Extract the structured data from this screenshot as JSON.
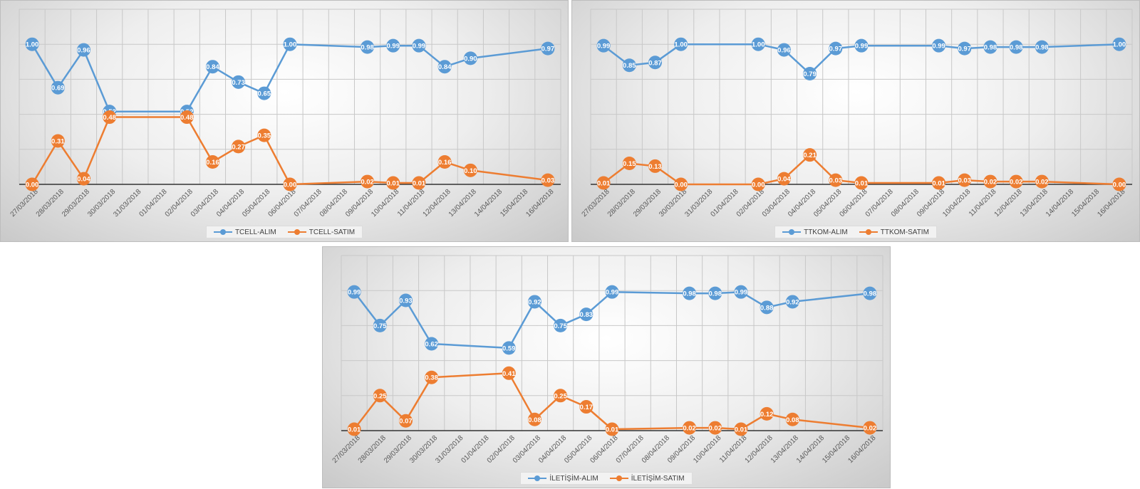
{
  "colors": {
    "alim": "#5b9bd5",
    "satim": "#ed7d31",
    "grid": "#c8c8c8",
    "axis_text": "#595959",
    "label_text": "#ffffff"
  },
  "chart_data": [
    {
      "type": "line",
      "title": "",
      "xlabel": "",
      "ylabel": "",
      "ylim": [
        0,
        1.25
      ],
      "grid": true,
      "legend_position": "bottom",
      "categories": [
        "27/03/2018",
        "28/03/2018",
        "29/03/2018",
        "30/03/2018",
        "31/03/2018",
        "01/04/2018",
        "02/04/2018",
        "03/04/2018",
        "04/04/2018",
        "05/04/2018",
        "06/04/2018",
        "07/04/2018",
        "08/04/2018",
        "09/04/2018",
        "10/04/2018",
        "11/04/2018",
        "12/04/2018",
        "13/04/2018",
        "14/04/2018",
        "15/04/2018",
        "16/04/2018"
      ],
      "series": [
        {
          "name": "TCELL-ALIM",
          "color": "#5b9bd5",
          "values": [
            1.0,
            0.69,
            0.96,
            0.52,
            null,
            null,
            0.52,
            0.84,
            0.73,
            0.65,
            1.0,
            null,
            null,
            0.98,
            0.99,
            0.99,
            0.84,
            0.9,
            null,
            null,
            0.97
          ],
          "labels": [
            "1.00",
            "0.69",
            "0.96",
            "0.52",
            "",
            "",
            "0.52",
            "0.84",
            "0.73",
            "0.65",
            "1.00",
            "",
            "",
            "0.98",
            "0.99",
            "0.99",
            "0.84",
            "0.90",
            "",
            "",
            "0.97"
          ]
        },
        {
          "name": "TCELL-SATIM",
          "color": "#ed7d31",
          "values": [
            0.0,
            0.31,
            0.04,
            0.48,
            null,
            null,
            0.48,
            0.16,
            0.27,
            0.35,
            0.0,
            null,
            null,
            0.02,
            0.01,
            0.01,
            0.16,
            0.1,
            null,
            null,
            0.03
          ],
          "labels": [
            "0.00",
            "0.31",
            "0.04",
            "0.48",
            "",
            "",
            "0.48",
            "0.16",
            "0.27",
            "0.35",
            "0.00",
            "",
            "",
            "0.02",
            "0.01",
            "0.01",
            "0.16",
            "0.10",
            "",
            "",
            "0.03"
          ]
        }
      ]
    },
    {
      "type": "line",
      "title": "",
      "xlabel": "",
      "ylabel": "",
      "ylim": [
        0,
        1.25
      ],
      "grid": true,
      "legend_position": "bottom",
      "categories": [
        "27/03/2018",
        "28/03/2018",
        "29/03/2018",
        "30/03/2018",
        "31/03/2018",
        "01/04/2018",
        "02/04/2018",
        "03/04/2018",
        "04/04/2018",
        "05/04/2018",
        "06/04/2018",
        "07/04/2018",
        "08/04/2018",
        "09/04/2018",
        "10/04/2018",
        "11/04/2018",
        "12/04/2018",
        "13/04/2018",
        "14/04/2018",
        "15/04/2018",
        "16/04/2018"
      ],
      "series": [
        {
          "name": "TTKOM-ALIM",
          "color": "#5b9bd5",
          "values": [
            0.99,
            0.85,
            0.87,
            1.0,
            null,
            null,
            1.0,
            0.96,
            0.79,
            0.97,
            0.99,
            null,
            null,
            0.99,
            0.97,
            0.98,
            0.98,
            0.98,
            null,
            null,
            1.0
          ],
          "labels": [
            "0.99",
            "0.85",
            "0.87",
            "1.00",
            "",
            "",
            "1.00",
            "0.96",
            "0.79",
            "0.97",
            "0.99",
            "",
            "",
            "0.99",
            "0.97",
            "0.98",
            "0.98",
            "0.98",
            "",
            "",
            "1.00"
          ]
        },
        {
          "name": "TTKOM-SATIM",
          "color": "#ed7d31",
          "values": [
            0.01,
            0.15,
            0.13,
            0.0,
            null,
            null,
            0.0,
            0.04,
            0.21,
            0.03,
            0.01,
            null,
            null,
            0.01,
            0.03,
            0.02,
            0.02,
            0.02,
            null,
            null,
            0.0
          ],
          "labels": [
            "0.01",
            "0.15",
            "0.13",
            "0.00",
            "",
            "",
            "0.00",
            "0.04",
            "0.21",
            "0.03",
            "0.01",
            "",
            "",
            "0.01",
            "0.03",
            "0.02",
            "0.02",
            "0.02",
            "",
            "",
            "0.00"
          ]
        }
      ]
    },
    {
      "type": "line",
      "title": "",
      "xlabel": "",
      "ylabel": "",
      "ylim": [
        0,
        1.25
      ],
      "grid": true,
      "legend_position": "bottom",
      "categories": [
        "27/03/2018",
        "28/03/2018",
        "29/03/2018",
        "30/03/2018",
        "31/03/2018",
        "01/04/2018",
        "02/04/2018",
        "03/04/2018",
        "04/04/2018",
        "05/04/2018",
        "06/04/2018",
        "07/04/2018",
        "08/04/2018",
        "09/04/2018",
        "10/04/2018",
        "11/04/2018",
        "12/04/2018",
        "13/04/2018",
        "14/04/2018",
        "15/04/2018",
        "16/04/2018"
      ],
      "series": [
        {
          "name": "İLETİŞİM-ALIM",
          "color": "#5b9bd5",
          "values": [
            0.99,
            0.75,
            0.93,
            0.62,
            null,
            null,
            0.59,
            0.92,
            0.75,
            0.83,
            0.99,
            null,
            null,
            0.98,
            0.98,
            0.99,
            0.88,
            0.92,
            null,
            null,
            0.98
          ],
          "labels": [
            "0.99",
            "0.75",
            "0.93",
            "0.62",
            "",
            "",
            "0.59",
            "0.92",
            "0.75",
            "0.83",
            "0.99",
            "",
            "",
            "0.98",
            "0.98",
            "0.99",
            "0.88",
            "0.92",
            "",
            "",
            "0.98"
          ]
        },
        {
          "name": "İLETİŞİM-SATIM",
          "color": "#ed7d31",
          "values": [
            0.01,
            0.25,
            0.07,
            0.38,
            null,
            null,
            0.41,
            0.08,
            0.25,
            0.17,
            0.01,
            null,
            null,
            0.02,
            0.02,
            0.01,
            0.12,
            0.08,
            null,
            null,
            0.02
          ],
          "labels": [
            "0.01",
            "0.25",
            "0.07",
            "0.38",
            "",
            "",
            "0.41",
            "0.08",
            "0.25",
            "0.17",
            "0.01",
            "",
            "",
            "0.02",
            "0.02",
            "0.01",
            "0.12",
            "0.08",
            "",
            "",
            "0.02"
          ]
        }
      ]
    }
  ]
}
